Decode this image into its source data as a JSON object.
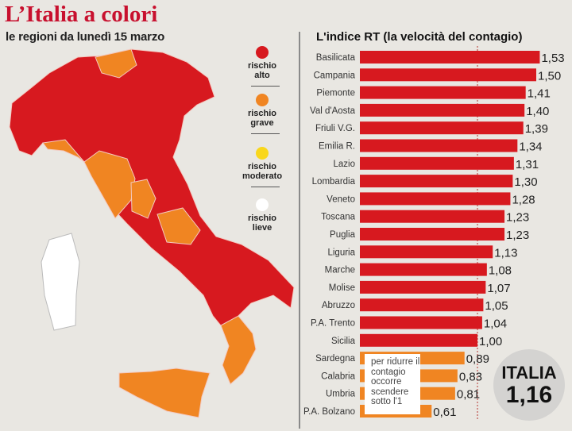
{
  "title": "L’Italia a colori",
  "subtitle": "le regioni da lunedì 15 marzo",
  "legend": [
    {
      "label1": "rischio",
      "label2": "alto",
      "color": "#d7191f"
    },
    {
      "label1": "rischio",
      "label2": "grave",
      "color": "#f08522"
    },
    {
      "label1": "rischio",
      "label2": "moderato",
      "color": "#f9d71c"
    },
    {
      "label1": "rischio",
      "label2": "lieve",
      "color": "#ffffff"
    }
  ],
  "note": "per ridurre il contagio occorre scendere sotto l'1",
  "italia": {
    "label": "ITALIA",
    "value": "1,16"
  },
  "chart_data": {
    "type": "bar",
    "orientation": "horizontal",
    "title": "L'indice RT (la velocità del contagio)",
    "categories": [
      "Basilicata",
      "Campania",
      "Piemonte",
      "Val d'Aosta",
      "Friuli V.G.",
      "Emilia R.",
      "Lazio",
      "Lombardia",
      "Veneto",
      "Toscana",
      "Puglia",
      "Liguria",
      "Marche",
      "Molise",
      "Abruzzo",
      "P.A. Trento",
      "Sicilia",
      "Sardegna",
      "Calabria",
      "Umbria",
      "P.A. Bolzano"
    ],
    "values": [
      1.53,
      1.5,
      1.41,
      1.4,
      1.39,
      1.34,
      1.31,
      1.3,
      1.28,
      1.23,
      1.23,
      1.13,
      1.08,
      1.07,
      1.05,
      1.04,
      1.0,
      0.89,
      0.83,
      0.81,
      0.61
    ],
    "labels": [
      "1,53",
      "1,50",
      "1,41",
      "1,40",
      "1,39",
      "1,34",
      "1,31",
      "1,30",
      "1,28",
      "1,23",
      "1,23",
      "1,13",
      "1,08",
      "1,07",
      "1,05",
      "1,04",
      "1,00",
      "0,89",
      "0,83",
      "0,81",
      "0,61"
    ],
    "reference_line": 1.0,
    "xlim": [
      0,
      1.6
    ],
    "colors": {
      "above_1": "#d7191f",
      "below_1": "#f08522"
    }
  }
}
